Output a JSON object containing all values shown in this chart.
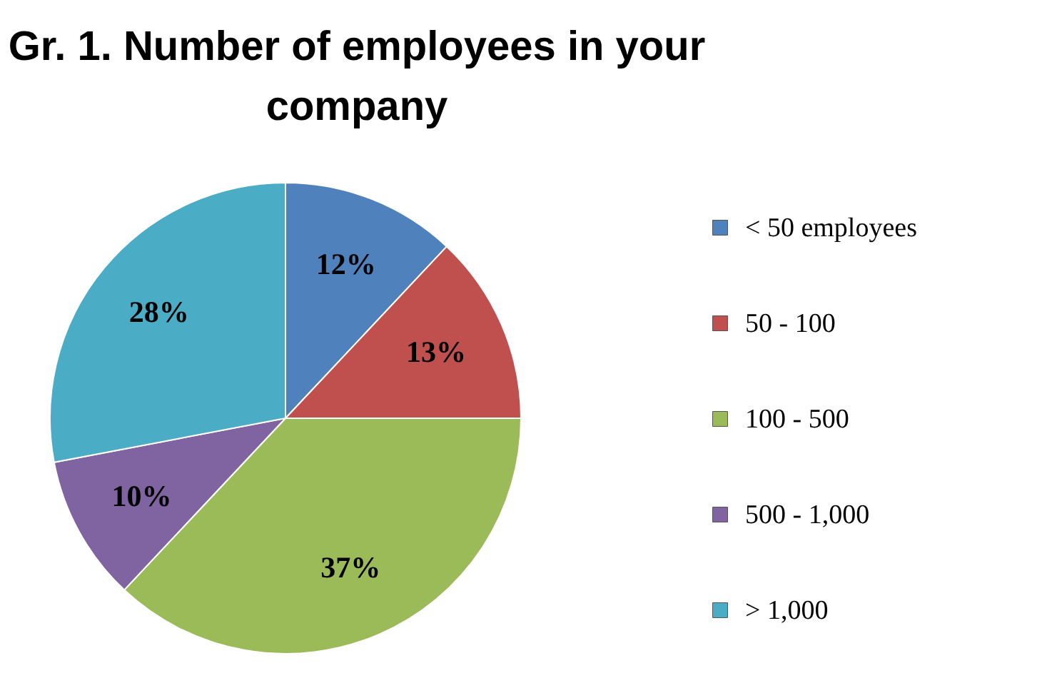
{
  "chart_data": {
    "type": "pie",
    "title": "Gr. 1. Number of employees in your company",
    "categories": [
      "< 50 employees",
      "50 - 100",
      "100 - 500",
      "500 - 1,000",
      "> 1,000"
    ],
    "values": [
      12,
      13,
      37,
      10,
      28
    ],
    "colors": [
      "#4f81bd",
      "#c0504d",
      "#9bbb59",
      "#8064a2",
      "#4bacc6"
    ],
    "value_labels": [
      "12%",
      "13%",
      "37%",
      "10%",
      "28%"
    ],
    "legend": "right"
  }
}
